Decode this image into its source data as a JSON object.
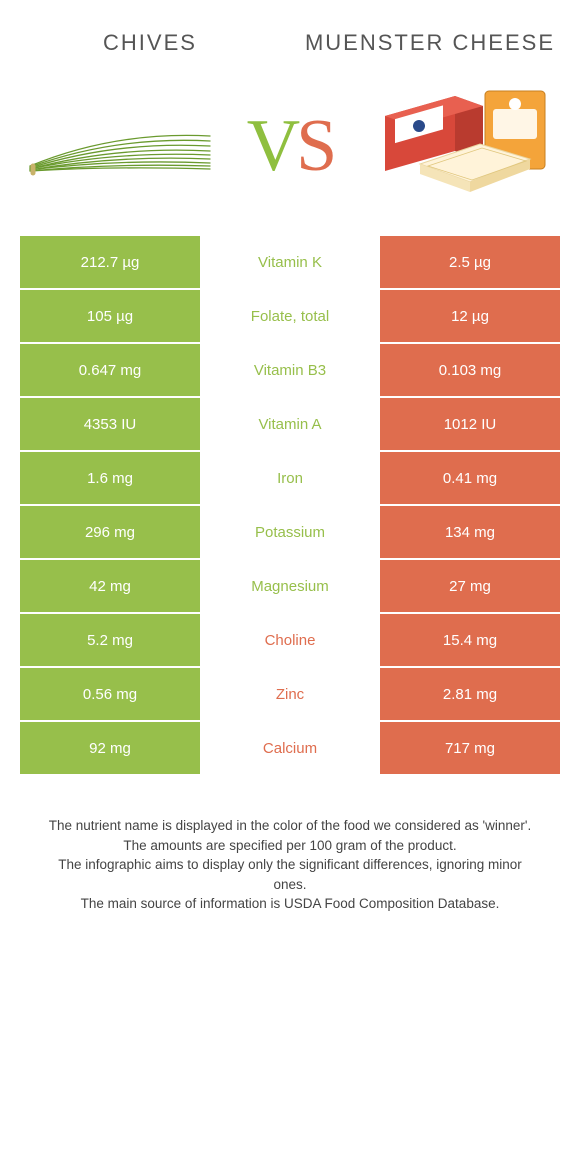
{
  "colors": {
    "left": "#97bf4b",
    "right": "#df6d4e",
    "bg": "#ffffff"
  },
  "header": {
    "left_title": "Chives",
    "right_title": "Muenster cheese"
  },
  "vs": {
    "v": "V",
    "s": "S"
  },
  "rows": [
    {
      "left": "212.7 µg",
      "label": "Vitamin K",
      "right": "2.5 µg",
      "winner": "left"
    },
    {
      "left": "105 µg",
      "label": "Folate, total",
      "right": "12 µg",
      "winner": "left"
    },
    {
      "left": "0.647 mg",
      "label": "Vitamin B3",
      "right": "0.103 mg",
      "winner": "left"
    },
    {
      "left": "4353 IU",
      "label": "Vitamin A",
      "right": "1012 IU",
      "winner": "left"
    },
    {
      "left": "1.6 mg",
      "label": "Iron",
      "right": "0.41 mg",
      "winner": "left"
    },
    {
      "left": "296 mg",
      "label": "Potassium",
      "right": "134 mg",
      "winner": "left"
    },
    {
      "left": "42 mg",
      "label": "Magnesium",
      "right": "27 mg",
      "winner": "left"
    },
    {
      "left": "5.2 mg",
      "label": "Choline",
      "right": "15.4 mg",
      "winner": "right"
    },
    {
      "left": "0.56 mg",
      "label": "Zinc",
      "right": "2.81 mg",
      "winner": "right"
    },
    {
      "left": "92 mg",
      "label": "Calcium",
      "right": "717 mg",
      "winner": "right"
    }
  ],
  "footnotes": [
    "The nutrient name is displayed in the color of the food we considered as 'winner'.",
    "The amounts are specified per 100 gram of the product.",
    "The infographic aims to display only the significant differences, ignoring minor ones.",
    "The main source of information is USDA Food Composition Database."
  ]
}
